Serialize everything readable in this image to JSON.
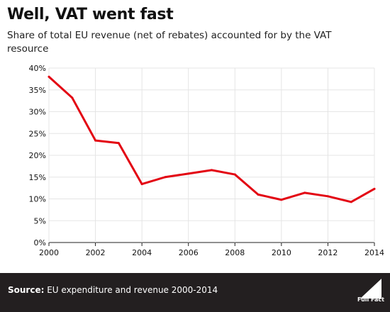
{
  "title": "Well, VAT went fast",
  "subtitle": "Share of total EU revenue (net of rebates) accounted for by the VAT resource",
  "footer": {
    "source_label": "Source:",
    "source_text": " EU expenditure and revenue 2000-2014",
    "logo_text": "Full Fact"
  },
  "colors": {
    "line": "#e30613",
    "footer_bg": "#231f20",
    "grid": "#e5e5e5"
  },
  "chart_data": {
    "type": "line",
    "title": "Well, VAT went fast",
    "subtitle": "Share of total EU revenue (net of rebates) accounted for by the VAT resource",
    "xlabel": "",
    "ylabel": "",
    "x": [
      2000,
      2001,
      2002,
      2003,
      2004,
      2005,
      2006,
      2007,
      2008,
      2009,
      2010,
      2011,
      2012,
      2013,
      2014
    ],
    "series": [
      {
        "values": [
          38.0,
          33.2,
          23.4,
          22.8,
          13.4,
          15.0,
          15.8,
          16.6,
          15.6,
          11.0,
          9.8,
          11.4,
          10.6,
          9.3,
          12.3
        ]
      }
    ],
    "xlim": [
      2000,
      2014
    ],
    "ylim": [
      0,
      40
    ],
    "xticks": [
      2000,
      2002,
      2004,
      2006,
      2008,
      2010,
      2012,
      2014
    ],
    "yticks": [
      0,
      5,
      10,
      15,
      20,
      25,
      30,
      35,
      40
    ],
    "ytick_suffix": "%",
    "grid": true
  }
}
